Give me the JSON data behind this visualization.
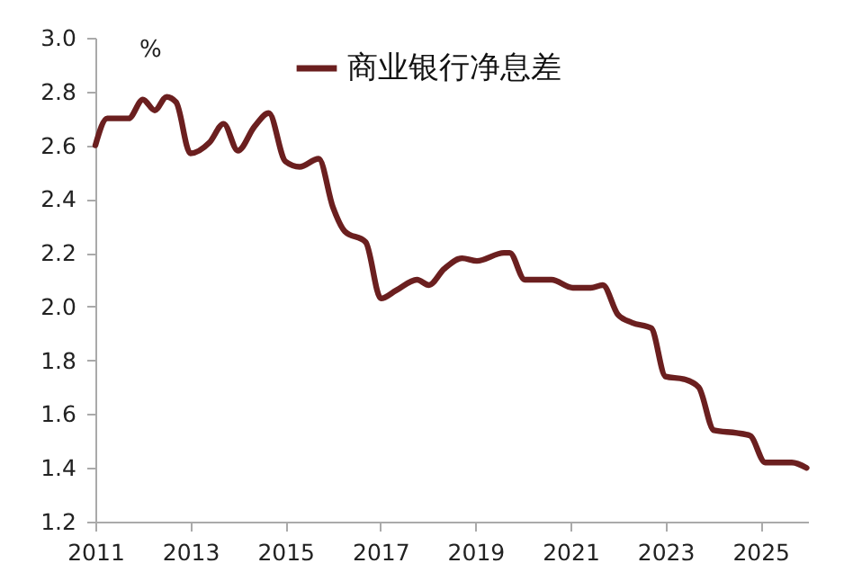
{
  "chart_data": {
    "type": "line",
    "ylabel": "%",
    "xlim": [
      2011,
      2026
    ],
    "xticks": [
      2011,
      2013,
      2015,
      2017,
      2019,
      2021,
      2023,
      2025
    ],
    "ylim": [
      1.2,
      3.0
    ],
    "yticks": [
      1.2,
      1.4,
      1.6,
      1.8,
      {
        "value": 2,
        "label": "2.0"
      },
      2.2,
      2.4,
      2.6,
      2.8,
      {
        "value": 3,
        "label": "3.0"
      }
    ],
    "legend": "top right",
    "grid": false,
    "series": [
      {
        "name": "商业银行净息差",
        "color": "#6b1f1f",
        "x": [
          2011.0,
          2011.25,
          2011.7,
          2012.0,
          2012.25,
          2012.5,
          2012.7,
          2013.0,
          2013.4,
          2013.7,
          2014.0,
          2014.35,
          2014.65,
          2015.0,
          2015.3,
          2015.7,
          2016.0,
          2016.25,
          2016.69,
          2017.01,
          2017.33,
          2017.77,
          2018.02,
          2018.34,
          2018.72,
          2019.03,
          2019.6,
          2019.72,
          2020.04,
          2020.6,
          2021.05,
          2021.43,
          2021.68,
          2022.0,
          2022.3,
          2022.7,
          2023.0,
          2023.39,
          2023.7,
          2024.02,
          2024.5,
          2024.78,
          2025.1,
          2025.66,
          2025.97
        ],
        "values": [
          2.6,
          2.7,
          2.7,
          2.77,
          2.73,
          2.78,
          2.76,
          2.57,
          2.61,
          2.68,
          2.58,
          2.67,
          2.72,
          2.54,
          2.52,
          2.55,
          2.37,
          2.28,
          2.24,
          2.03,
          2.06,
          2.1,
          2.08,
          2.14,
          2.18,
          2.17,
          2.2,
          2.2,
          2.1,
          2.1,
          2.07,
          2.07,
          2.08,
          1.97,
          1.94,
          1.92,
          1.74,
          1.73,
          1.7,
          1.54,
          1.53,
          1.52,
          1.42,
          1.42,
          1.4
        ]
      }
    ]
  }
}
